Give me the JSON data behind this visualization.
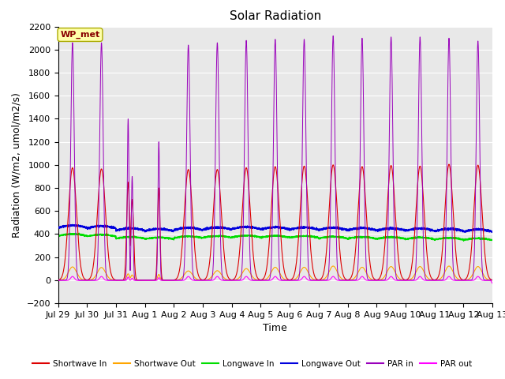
{
  "title": "Solar Radiation",
  "ylabel": "Radiation (W/m2, umol/m2/s)",
  "xlabel": "Time",
  "ylim": [
    -200,
    2200
  ],
  "yticks": [
    -200,
    0,
    200,
    400,
    600,
    800,
    1000,
    1200,
    1400,
    1600,
    1800,
    2000,
    2200
  ],
  "x_labels": [
    "Jul 29",
    "Jul 30",
    "Jul 31",
    "Aug 1",
    "Aug 2",
    "Aug 3",
    "Aug 4",
    "Aug 5",
    "Aug 6",
    "Aug 7",
    "Aug 8",
    "Aug 9",
    "Aug 10",
    "Aug 11",
    "Aug 12",
    "Aug 13"
  ],
  "n_days": 15,
  "colors": {
    "shortwave_in": "#DD0000",
    "shortwave_out": "#FFA500",
    "longwave_in": "#00DD00",
    "longwave_out": "#0000DD",
    "par_in": "#9900BB",
    "par_out": "#FF00FF"
  },
  "legend_labels": [
    "Shortwave In",
    "Shortwave Out",
    "Longwave In",
    "Longwave Out",
    "PAR in",
    "PAR out"
  ],
  "wp_met_box_color": "#FFFFAA",
  "wp_met_text_color": "#880000",
  "background_color": "#E8E8E8",
  "grid_color": "#FFFFFF",
  "title_fontsize": 11,
  "label_fontsize": 9,
  "tick_fontsize": 8
}
